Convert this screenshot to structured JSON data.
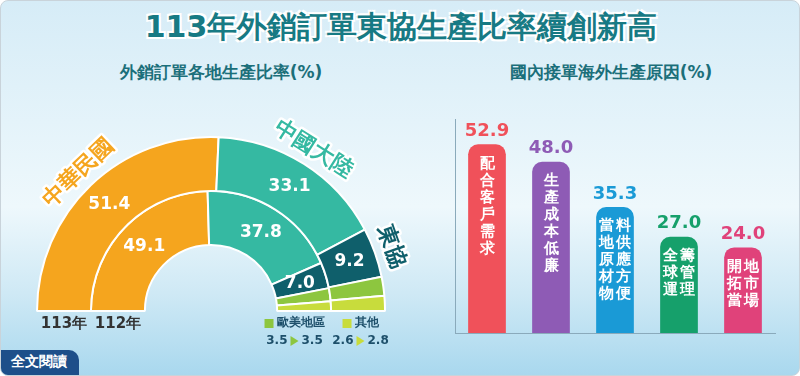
{
  "title": "113年外銷訂單東協生產比率續創新高",
  "link_text": "全文閱讀",
  "chart_data": [
    {
      "type": "doughnut",
      "title": "外銷訂單各地生產比率(%)",
      "categories": [
        "中華民國",
        "中國大陸",
        "東協",
        "歐美地區",
        "其他"
      ],
      "series": [
        {
          "name": "113年",
          "values": [
            51.4,
            33.1,
            9.2,
            3.5,
            2.8
          ],
          "value_labels": [
            "51.4",
            "33.1",
            "9.2",
            "3.5",
            "2.8"
          ]
        },
        {
          "name": "112年",
          "values": [
            49.1,
            37.8,
            7.0,
            3.5,
            2.6
          ],
          "value_labels": [
            "49.1",
            "37.8",
            "7.0",
            "3.5",
            "2.6"
          ]
        }
      ],
      "colors": [
        "#f5a51e",
        "#35b9a2",
        "#0f5f6b",
        "#8dc63f",
        "#c8dc3c"
      ],
      "data_labels": true
    },
    {
      "type": "bar",
      "title": "國內接單海外生產原因(%)",
      "categories": [
        "配合客戶需求",
        "生產成本低廉",
        "當地原材物料供應方便",
        "全球運籌管理",
        "開拓當地市場"
      ],
      "values": [
        52.9,
        48.0,
        35.3,
        27.0,
        24.0
      ],
      "value_labels": [
        "52.9",
        "48.0",
        "35.3",
        "27.0",
        "24.0"
      ],
      "colors": [
        "#f0515a",
        "#8e5bb5",
        "#1a9ad6",
        "#16a06b",
        "#e0427a"
      ],
      "ylim": [
        0,
        60
      ],
      "grid": false,
      "data_labels": true,
      "tick_labels": false
    }
  ]
}
